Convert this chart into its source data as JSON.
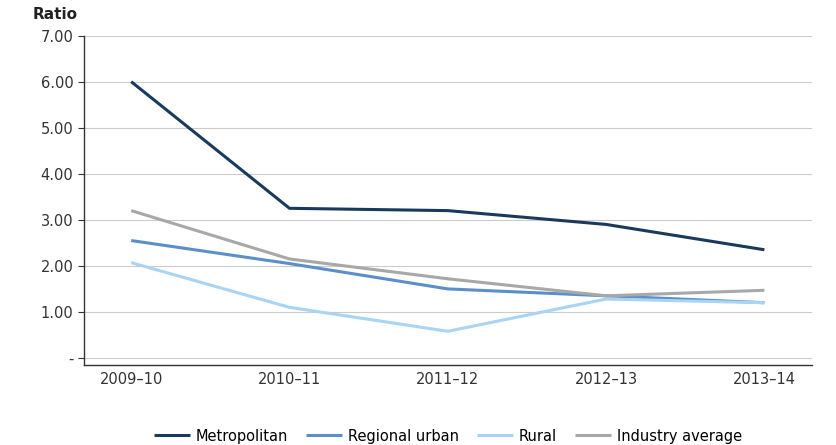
{
  "x_labels": [
    "2009–10",
    "2010–11",
    "2011–12",
    "2012–13",
    "2013–14"
  ],
  "series": {
    "Metropolitan": {
      "values": [
        6.0,
        3.25,
        3.2,
        2.9,
        2.35
      ],
      "color": "#1a3a5c",
      "linewidth": 2.2
    },
    "Regional urban": {
      "values": [
        2.55,
        2.05,
        1.5,
        1.35,
        1.2
      ],
      "color": "#5b8fc9",
      "linewidth": 2.2
    },
    "Rural": {
      "values": [
        2.07,
        1.1,
        0.58,
        1.28,
        1.2
      ],
      "color": "#a8d4f5",
      "linewidth": 2.2
    },
    "Industry average": {
      "values": [
        3.2,
        2.15,
        1.72,
        1.35,
        1.47
      ],
      "color": "#a8a8a8",
      "linewidth": 2.2
    }
  },
  "ylabel": "Ratio",
  "ylim": [
    -0.15,
    7.0
  ],
  "yticks": [
    0.0,
    1.0,
    2.0,
    3.0,
    4.0,
    5.0,
    6.0,
    7.0
  ],
  "ytick_labels": [
    "-",
    "1.00",
    "2.00",
    "3.00",
    "4.00",
    "5.00",
    "6.00",
    "7.00"
  ],
  "background_color": "#ffffff",
  "grid_color": "#cccccc",
  "legend_order": [
    "Metropolitan",
    "Regional urban",
    "Rural",
    "Industry average"
  ]
}
